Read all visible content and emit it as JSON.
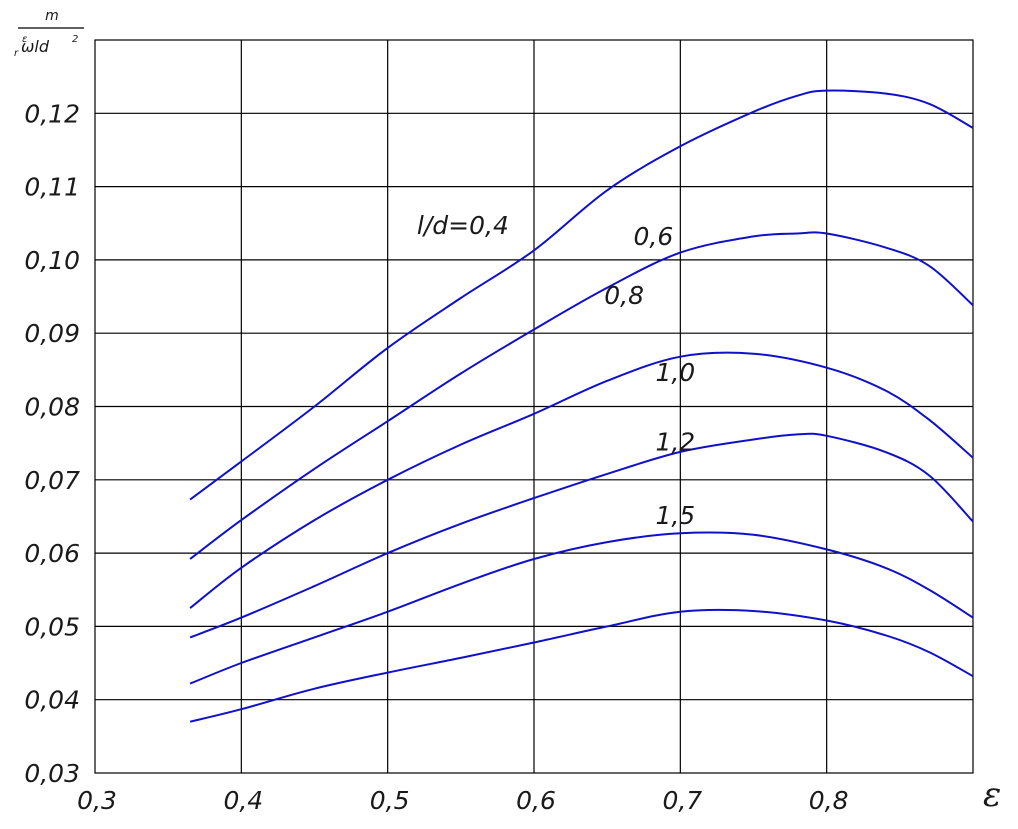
{
  "chart_data": {
    "type": "line",
    "title": "",
    "xlabel": "ε",
    "ylabel": {
      "numerator": "m",
      "denominator_prefix": "r",
      "denominator_super": "ε",
      "denominator_body": "ωld",
      "denominator_power": "2"
    },
    "xlim": [
      0.3,
      0.9
    ],
    "ylim": [
      0.03,
      0.13
    ],
    "x_ticks": [
      {
        "v": 0.3,
        "label": "0,3"
      },
      {
        "v": 0.4,
        "label": "0,4"
      },
      {
        "v": 0.5,
        "label": "0,5"
      },
      {
        "v": 0.6,
        "label": "0,6"
      },
      {
        "v": 0.7,
        "label": "0,7"
      },
      {
        "v": 0.8,
        "label": "0,8"
      }
    ],
    "y_ticks": [
      {
        "v": 0.03,
        "label": "0,03"
      },
      {
        "v": 0.04,
        "label": "0,04"
      },
      {
        "v": 0.05,
        "label": "0,05"
      },
      {
        "v": 0.06,
        "label": "0,06"
      },
      {
        "v": 0.07,
        "label": "0,07"
      },
      {
        "v": 0.08,
        "label": "0,08"
      },
      {
        "v": 0.09,
        "label": "0,09"
      },
      {
        "v": 0.1,
        "label": "0,10"
      },
      {
        "v": 0.11,
        "label": "0,11"
      },
      {
        "v": 0.12,
        "label": "0,12"
      }
    ],
    "grid": true,
    "legend": "none",
    "series": [
      {
        "label": "l/d=0,4",
        "label_at": [
          0.52,
          0.1035
        ],
        "points": [
          [
            0.365,
            0.0673
          ],
          [
            0.4,
            0.0725
          ],
          [
            0.45,
            0.08
          ],
          [
            0.5,
            0.088
          ],
          [
            0.55,
            0.0948
          ],
          [
            0.6,
            0.1013
          ],
          [
            0.65,
            0.1095
          ],
          [
            0.7,
            0.1155
          ],
          [
            0.75,
            0.1202
          ],
          [
            0.78,
            0.1224
          ],
          [
            0.8,
            0.1231
          ],
          [
            0.84,
            0.1227
          ],
          [
            0.87,
            0.1213
          ],
          [
            0.9,
            0.118
          ]
        ]
      },
      {
        "label": "0,6",
        "label_at": [
          0.668,
          0.102
        ],
        "points": [
          [
            0.365,
            0.0592
          ],
          [
            0.4,
            0.0645
          ],
          [
            0.45,
            0.0715
          ],
          [
            0.5,
            0.078
          ],
          [
            0.55,
            0.0845
          ],
          [
            0.6,
            0.0905
          ],
          [
            0.65,
            0.0962
          ],
          [
            0.7,
            0.101
          ],
          [
            0.75,
            0.1032
          ],
          [
            0.78,
            0.1036
          ],
          [
            0.8,
            0.1036
          ],
          [
            0.84,
            0.1017
          ],
          [
            0.87,
            0.0992
          ],
          [
            0.9,
            0.0938
          ]
        ]
      },
      {
        "label": "0,8",
        "label_at": [
          0.648,
          0.094
        ],
        "points": [
          [
            0.365,
            0.0525
          ],
          [
            0.4,
            0.058
          ],
          [
            0.45,
            0.0645
          ],
          [
            0.5,
            0.07
          ],
          [
            0.55,
            0.0748
          ],
          [
            0.6,
            0.079
          ],
          [
            0.65,
            0.0835
          ],
          [
            0.7,
            0.0868
          ],
          [
            0.75,
            0.0872
          ],
          [
            0.8,
            0.0853
          ],
          [
            0.84,
            0.0822
          ],
          [
            0.87,
            0.0782
          ],
          [
            0.9,
            0.073
          ]
        ]
      },
      {
        "label": "1,0",
        "label_at": [
          0.683,
          0.0835
        ],
        "points": [
          [
            0.365,
            0.0485
          ],
          [
            0.4,
            0.0512
          ],
          [
            0.45,
            0.0555
          ],
          [
            0.5,
            0.06
          ],
          [
            0.55,
            0.064
          ],
          [
            0.6,
            0.0675
          ],
          [
            0.65,
            0.0708
          ],
          [
            0.7,
            0.0738
          ],
          [
            0.75,
            0.0755
          ],
          [
            0.78,
            0.0762
          ],
          [
            0.8,
            0.076
          ],
          [
            0.84,
            0.0738
          ],
          [
            0.87,
            0.0706
          ],
          [
            0.9,
            0.0643
          ]
        ]
      },
      {
        "label": "1,2",
        "label_at": [
          0.683,
          0.074
        ],
        "points": [
          [
            0.365,
            0.0422
          ],
          [
            0.4,
            0.045
          ],
          [
            0.45,
            0.0485
          ],
          [
            0.5,
            0.052
          ],
          [
            0.55,
            0.0558
          ],
          [
            0.6,
            0.0592
          ],
          [
            0.65,
            0.0615
          ],
          [
            0.7,
            0.0627
          ],
          [
            0.75,
            0.0625
          ],
          [
            0.8,
            0.0605
          ],
          [
            0.84,
            0.058
          ],
          [
            0.87,
            0.055
          ],
          [
            0.9,
            0.0512
          ]
        ]
      },
      {
        "label": "1,5",
        "label_at": [
          0.683,
          0.064
        ],
        "points": [
          [
            0.365,
            0.037
          ],
          [
            0.4,
            0.0387
          ],
          [
            0.45,
            0.0415
          ],
          [
            0.5,
            0.0437
          ],
          [
            0.55,
            0.0457
          ],
          [
            0.6,
            0.0478
          ],
          [
            0.65,
            0.05
          ],
          [
            0.7,
            0.052
          ],
          [
            0.75,
            0.0521
          ],
          [
            0.8,
            0.0508
          ],
          [
            0.84,
            0.0488
          ],
          [
            0.87,
            0.0465
          ],
          [
            0.9,
            0.0432
          ]
        ]
      }
    ]
  }
}
